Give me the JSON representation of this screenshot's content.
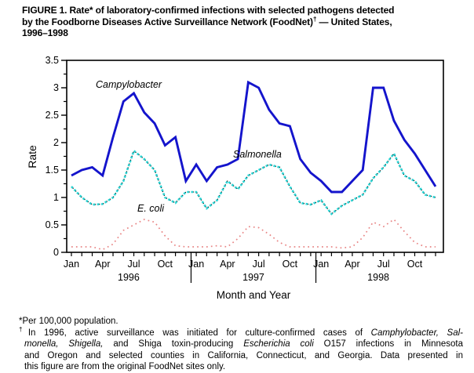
{
  "figure": {
    "title_lines": [
      [
        {
          "t": "FIGURE 1. Rate* of laboratory-confirmed infections with selected pathogens detected"
        }
      ],
      [
        {
          "t": "by the Foodborne Diseases Active Surveillance Network (FoodNet)"
        },
        {
          "t": "†",
          "sup": true
        },
        {
          "t": " — United States,"
        }
      ],
      [
        {
          "t": "1996–1998"
        }
      ]
    ]
  },
  "chart": {
    "ylabel": "Rate",
    "xlabel": "Month and Year",
    "y_tick_labels": [
      "3.5",
      "3",
      "2.5",
      "2",
      "1.5",
      "1",
      "0.5",
      "0"
    ],
    "x_tick_labels": [
      "Jan",
      "Apr",
      "Jul",
      "Oct"
    ],
    "year_labels": [
      "1996",
      "1997",
      "1998"
    ],
    "series_labels": {
      "campylobacter": "Campylobacter",
      "salmonella": "Salmonella",
      "ecoli": "E. coli"
    },
    "colors": {
      "campylobacter": "#1414cc",
      "salmonella": "#2bd4d4",
      "salmonella_speckle": "#101010",
      "ecoli": "#e88484",
      "axis": "#000000"
    },
    "chart_data": {
      "type": "line",
      "title": "Rate of laboratory-confirmed infections with selected pathogens, FoodNet, United States, 1996-1998",
      "xlabel": "Month and Year",
      "ylabel": "Rate",
      "ylim": [
        0,
        3.5
      ],
      "y_major_step": 0.5,
      "y_minor_step": 0.25,
      "grid": false,
      "legend": "inline-labels",
      "units": "per 100,000 population",
      "categories": [
        "Jan 1996",
        "Feb 1996",
        "Mar 1996",
        "Apr 1996",
        "May 1996",
        "Jun 1996",
        "Jul 1996",
        "Aug 1996",
        "Sep 1996",
        "Oct 1996",
        "Nov 1996",
        "Dec 1996",
        "Jan 1997",
        "Feb 1997",
        "Mar 1997",
        "Apr 1997",
        "May 1997",
        "Jun 1997",
        "Jul 1997",
        "Aug 1997",
        "Sep 1997",
        "Oct 1997",
        "Nov 1997",
        "Dec 1997",
        "Jan 1998",
        "Feb 1998",
        "Mar 1998",
        "Apr 1998",
        "May 1998",
        "Jun 1998",
        "Jul 1998",
        "Aug 1998",
        "Sep 1998",
        "Oct 1998",
        "Nov 1998",
        "Dec 1998"
      ],
      "series": [
        {
          "name": "Campylobacter",
          "style": "solid",
          "values": [
            1.4,
            1.5,
            1.55,
            1.4,
            2.1,
            2.75,
            2.9,
            2.55,
            2.35,
            1.95,
            2.1,
            1.3,
            1.6,
            1.3,
            1.55,
            1.6,
            1.7,
            3.1,
            3.0,
            2.6,
            2.35,
            2.3,
            1.7,
            1.45,
            1.3,
            1.1,
            1.1,
            1.3,
            1.5,
            3.0,
            3.0,
            2.4,
            2.05,
            1.8,
            1.5,
            1.2
          ]
        },
        {
          "name": "Salmonella",
          "style": "dotted-cyan",
          "values": [
            1.2,
            1.0,
            0.87,
            0.88,
            1.0,
            1.3,
            1.85,
            1.7,
            1.5,
            1.0,
            0.9,
            1.1,
            1.1,
            0.8,
            0.95,
            1.3,
            1.15,
            1.4,
            1.5,
            1.6,
            1.55,
            1.2,
            0.9,
            0.87,
            0.95,
            0.7,
            0.85,
            0.95,
            1.05,
            1.35,
            1.55,
            1.8,
            1.4,
            1.3,
            1.05,
            1.0
          ]
        },
        {
          "name": "E. coli",
          "style": "dotted-salmon",
          "values": [
            0.1,
            0.1,
            0.1,
            0.05,
            0.15,
            0.4,
            0.5,
            0.6,
            0.55,
            0.3,
            0.12,
            0.1,
            0.1,
            0.1,
            0.12,
            0.1,
            0.25,
            0.47,
            0.45,
            0.33,
            0.18,
            0.1,
            0.1,
            0.1,
            0.1,
            0.1,
            0.08,
            0.1,
            0.27,
            0.55,
            0.47,
            0.6,
            0.38,
            0.18,
            0.1,
            0.1
          ]
        }
      ]
    }
  },
  "footnotes": {
    "f1": [
      [
        {
          "t": "*Per 100,000 population."
        }
      ]
    ],
    "f2_lines": [
      [
        {
          "t": "†",
          "sup": true
        },
        {
          "t": "In 1996, active surveillance was initiated for culture-confirmed cases of "
        },
        {
          "t": "Camphylobacter, Sal-",
          "i": true
        }
      ],
      [
        {
          "t": "monella, Shigella,",
          "i": true
        },
        {
          "t": " and Shiga toxin-producing "
        },
        {
          "t": "Escherichia coli",
          "i": true
        },
        {
          "t": " O157 infections in Minnesota"
        }
      ],
      [
        {
          "t": "and Oregon and selected counties in California, Connecticut, and Georgia. Data presented in"
        }
      ],
      [
        {
          "t": "this figure are from the original FoodNet sites only."
        }
      ]
    ]
  }
}
